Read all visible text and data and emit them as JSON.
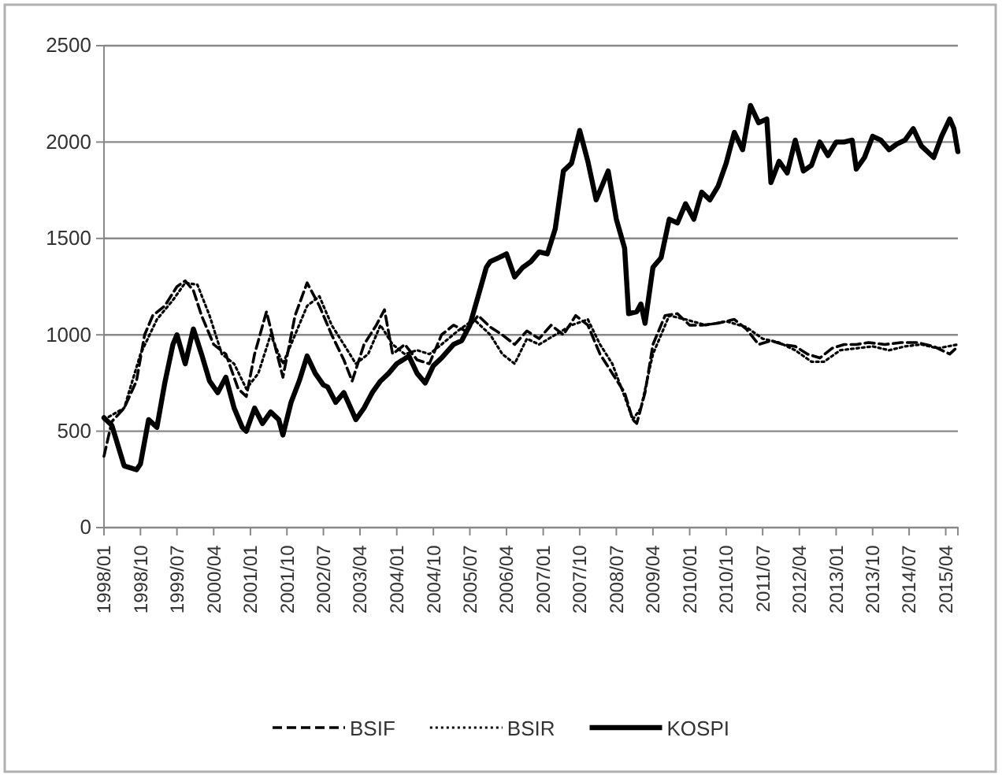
{
  "chart_data": {
    "type": "line",
    "xlim": [
      "1998-01",
      "2015-07"
    ],
    "ylim": [
      0,
      2500
    ],
    "yticks": [
      0,
      500,
      1000,
      1500,
      2000,
      2500
    ],
    "xticks": [
      {
        "value": "1998-01",
        "label": "1998/01"
      },
      {
        "value": "1998-10",
        "label": "1998/10"
      },
      {
        "value": "1999-07",
        "label": "1999/07"
      },
      {
        "value": "2000-04",
        "label": "2000/04"
      },
      {
        "value": "2001-01",
        "label": "2001/01"
      },
      {
        "value": "2001-10",
        "label": "2001/10"
      },
      {
        "value": "2002-07",
        "label": "2002/07"
      },
      {
        "value": "2003-04",
        "label": "2003/04"
      },
      {
        "value": "2004-01",
        "label": "2004/01"
      },
      {
        "value": "2004-10",
        "label": "2004/10"
      },
      {
        "value": "2005-07",
        "label": "2005/07"
      },
      {
        "value": "2006-04",
        "label": "2006/04"
      },
      {
        "value": "2007-01",
        "label": "2007/01"
      },
      {
        "value": "2007-10",
        "label": "2007/10"
      },
      {
        "value": "2008-07",
        "label": "2008/07"
      },
      {
        "value": "2009-04",
        "label": "2009/04"
      },
      {
        "value": "2010-01",
        "label": "2010/01"
      },
      {
        "value": "2010-10",
        "label": "2010/10"
      },
      {
        "value": "2011-07",
        "label": "2011/07"
      },
      {
        "value": "2012-04",
        "label": "2012/04"
      },
      {
        "value": "2013-01",
        "label": "2013/01"
      },
      {
        "value": "2013-10",
        "label": "2013/10"
      },
      {
        "value": "2014-07",
        "label": "2014/07"
      },
      {
        "value": "2015-04",
        "label": "2015/04"
      }
    ],
    "grid": "y",
    "legend": "bottom",
    "series": [
      {
        "name": "BSIF",
        "color": "#000000",
        "line_style": "dashed",
        "x": [
          "1998-01",
          "1998-03",
          "1998-06",
          "1998-09",
          "1998-11",
          "1999-01",
          "1999-04",
          "1999-07",
          "1999-09",
          "1999-11",
          "2000-01",
          "2000-04",
          "2000-07",
          "2000-10",
          "2000-12",
          "2001-02",
          "2001-05",
          "2001-07",
          "2001-09",
          "2001-12",
          "2002-03",
          "2002-06",
          "2002-09",
          "2002-12",
          "2003-02",
          "2003-05",
          "2003-08",
          "2003-10",
          "2003-12",
          "2004-03",
          "2004-06",
          "2004-09",
          "2004-12",
          "2005-03",
          "2005-06",
          "2005-09",
          "2005-12",
          "2006-03",
          "2006-06",
          "2006-09",
          "2006-12",
          "2007-03",
          "2007-06",
          "2007-09",
          "2007-12",
          "2008-03",
          "2008-06",
          "2008-09",
          "2008-11",
          "2008-12",
          "2009-02",
          "2009-04",
          "2009-07",
          "2009-10",
          "2010-01",
          "2010-04",
          "2010-08",
          "2010-12",
          "2011-03",
          "2011-06",
          "2011-09",
          "2011-12",
          "2012-03",
          "2012-06",
          "2012-09",
          "2012-12",
          "2013-03",
          "2013-06",
          "2013-09",
          "2014-01",
          "2014-05",
          "2014-09",
          "2015-01",
          "2015-05",
          "2015-07"
        ],
        "values": [
          370,
          550,
          620,
          760,
          1000,
          1100,
          1150,
          1250,
          1280,
          1230,
          1100,
          950,
          900,
          720,
          680,
          900,
          1120,
          950,
          780,
          1100,
          1270,
          1150,
          1000,
          870,
          760,
          950,
          1050,
          1130,
          900,
          950,
          870,
          850,
          1000,
          1050,
          1020,
          1100,
          1040,
          1000,
          950,
          1020,
          980,
          1050,
          1000,
          1100,
          1050,
          900,
          800,
          700,
          560,
          540,
          700,
          950,
          1100,
          1110,
          1050,
          1050,
          1060,
          1080,
          1030,
          950,
          970,
          950,
          940,
          900,
          880,
          930,
          950,
          950,
          960,
          950,
          960,
          960,
          940,
          900,
          940
        ]
      },
      {
        "name": "BSIR",
        "color": "#000000",
        "line_style": "dotted",
        "x": [
          "1998-01",
          "1998-06",
          "1998-10",
          "1999-02",
          "1999-06",
          "1999-09",
          "1999-12",
          "2000-03",
          "2000-06",
          "2000-09",
          "2000-12",
          "2001-03",
          "2001-06",
          "2001-09",
          "2001-12",
          "2002-03",
          "2002-06",
          "2002-09",
          "2002-12",
          "2003-03",
          "2003-06",
          "2003-09",
          "2003-12",
          "2004-03",
          "2004-06",
          "2004-09",
          "2004-12",
          "2005-04",
          "2005-08",
          "2005-12",
          "2006-03",
          "2006-06",
          "2006-09",
          "2006-12",
          "2007-04",
          "2007-08",
          "2007-12",
          "2008-03",
          "2008-06",
          "2008-09",
          "2008-11",
          "2009-01",
          "2009-04",
          "2009-08",
          "2009-12",
          "2010-05",
          "2010-10",
          "2011-03",
          "2011-07",
          "2011-11",
          "2012-03",
          "2012-07",
          "2012-10",
          "2013-02",
          "2013-06",
          "2013-10",
          "2014-02",
          "2014-06",
          "2014-10",
          "2015-02",
          "2015-07"
        ],
        "values": [
          560,
          620,
          900,
          1080,
          1180,
          1270,
          1260,
          1100,
          900,
          850,
          720,
          800,
          1000,
          850,
          1000,
          1150,
          1200,
          1050,
          950,
          850,
          900,
          1050,
          950,
          900,
          920,
          900,
          950,
          1020,
          1080,
          1000,
          900,
          850,
          980,
          950,
          1000,
          1050,
          1080,
          950,
          850,
          680,
          560,
          620,
          900,
          1100,
          1080,
          1050,
          1070,
          1040,
          980,
          960,
          920,
          860,
          860,
          920,
          930,
          940,
          920,
          940,
          950,
          930,
          950
        ]
      },
      {
        "name": "KOSPI",
        "color": "#000000",
        "line_style": "solid",
        "x": [
          "1998-01",
          "1998-03",
          "1998-06",
          "1998-09",
          "1998-10",
          "1998-12",
          "1999-02",
          "1999-04",
          "1999-06",
          "1999-07",
          "1999-09",
          "1999-11",
          "2000-01",
          "2000-03",
          "2000-05",
          "2000-07",
          "2000-09",
          "2000-11",
          "2000-12",
          "2001-02",
          "2001-04",
          "2001-06",
          "2001-08",
          "2001-09",
          "2001-11",
          "2002-01",
          "2002-03",
          "2002-05",
          "2002-07",
          "2002-08",
          "2002-10",
          "2002-12",
          "2003-03",
          "2003-05",
          "2003-07",
          "2003-09",
          "2003-11",
          "2004-01",
          "2004-04",
          "2004-06",
          "2004-08",
          "2004-10",
          "2004-12",
          "2005-03",
          "2005-05",
          "2005-07",
          "2005-09",
          "2005-11",
          "2005-12",
          "2006-02",
          "2006-04",
          "2006-06",
          "2006-08",
          "2006-10",
          "2006-12",
          "2007-02",
          "2007-04",
          "2007-06",
          "2007-08",
          "2007-10",
          "2007-12",
          "2008-02",
          "2008-04",
          "2008-05",
          "2008-07",
          "2008-09",
          "2008-10",
          "2008-12",
          "2009-01",
          "2009-02",
          "2009-04",
          "2009-06",
          "2009-08",
          "2009-10",
          "2009-12",
          "2010-02",
          "2010-04",
          "2010-06",
          "2010-08",
          "2010-10",
          "2010-12",
          "2011-02",
          "2011-04",
          "2011-06",
          "2011-08",
          "2011-09",
          "2011-11",
          "2012-01",
          "2012-03",
          "2012-05",
          "2012-07",
          "2012-09",
          "2012-11",
          "2013-01",
          "2013-03",
          "2013-05",
          "2013-06",
          "2013-08",
          "2013-10",
          "2013-12",
          "2014-02",
          "2014-04",
          "2014-06",
          "2014-08",
          "2014-10",
          "2015-01",
          "2015-03",
          "2015-05",
          "2015-06",
          "2015-07"
        ],
        "values": [
          570,
          530,
          320,
          300,
          330,
          560,
          520,
          750,
          950,
          1000,
          850,
          1030,
          900,
          760,
          700,
          780,
          620,
          520,
          500,
          620,
          540,
          600,
          560,
          480,
          650,
          760,
          890,
          800,
          740,
          730,
          650,
          700,
          560,
          620,
          700,
          760,
          800,
          850,
          890,
          800,
          750,
          840,
          880,
          950,
          970,
          1050,
          1200,
          1350,
          1380,
          1400,
          1420,
          1300,
          1350,
          1380,
          1430,
          1420,
          1550,
          1850,
          1890,
          2060,
          1900,
          1700,
          1800,
          1850,
          1600,
          1450,
          1110,
          1120,
          1160,
          1060,
          1350,
          1400,
          1600,
          1580,
          1680,
          1600,
          1740,
          1700,
          1770,
          1890,
          2050,
          1960,
          2190,
          2100,
          2120,
          1790,
          1900,
          1840,
          2010,
          1850,
          1880,
          2000,
          1930,
          2000,
          2000,
          2010,
          1860,
          1920,
          2030,
          2010,
          1960,
          1990,
          2010,
          2070,
          1980,
          1920,
          2030,
          2120,
          2070,
          1950
        ]
      }
    ]
  }
}
